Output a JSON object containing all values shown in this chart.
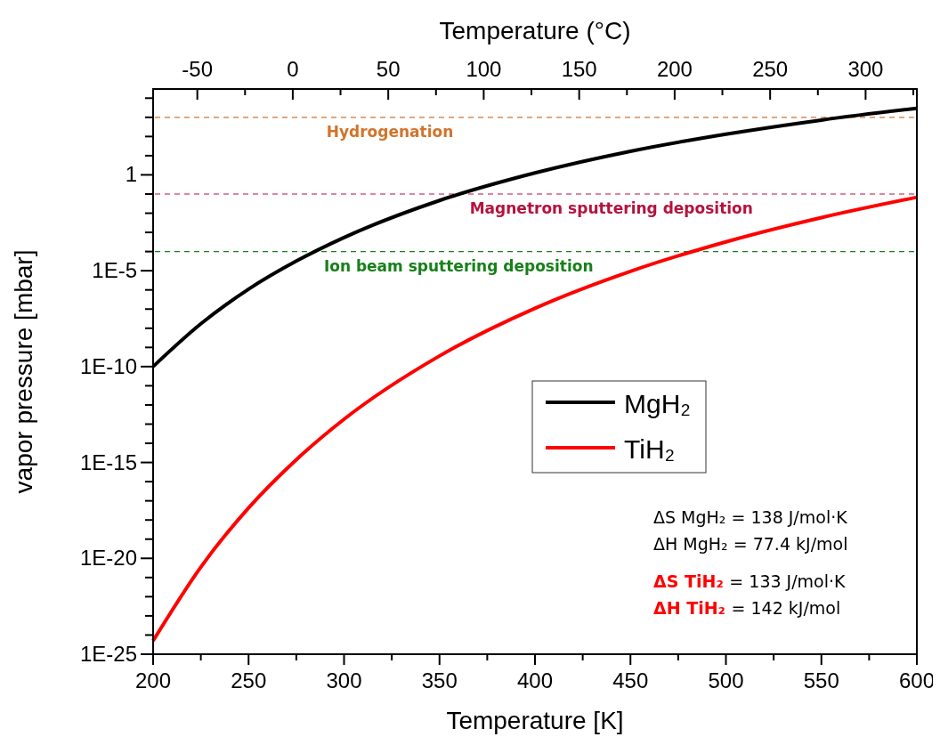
{
  "chart_data": {
    "type": "line",
    "xlabel": "Temperature [K]",
    "ylabel": "vapor pressure [mbar]",
    "x2label": "Temperature (°C)",
    "x": [
      200,
      225,
      250,
      275,
      300,
      350,
      400,
      450,
      500,
      550,
      600
    ],
    "series": [
      {
        "name": "MgH₂",
        "color": "#000000",
        "values": [
          1e-10,
          1.7e-08,
          1.1e-06,
          3.2e-05,
          0.00054,
          0.046,
          1.26,
          17,
          132,
          720,
          2950
        ]
      },
      {
        "name": "TiH₂",
        "color": "#ff0000",
        "values": [
          5e-25,
          3.5e-21,
          4.3e-18,
          1.4e-15,
          1.8e-13,
          3.6e-10,
          1.1e-07,
          9.3e-06,
          0.00032,
          0.0059,
          0.068
        ]
      }
    ],
    "xlim": [
      200,
      600
    ],
    "xticks": [
      200,
      {
        "value": 225,
        "label": null
      },
      250,
      {
        "value": 275,
        "label": null
      },
      300,
      {
        "value": 325,
        "label": null
      },
      350,
      {
        "value": 375,
        "label": null
      },
      400,
      {
        "value": 425,
        "label": null
      },
      450,
      {
        "value": 475,
        "label": null
      },
      500,
      {
        "value": 525,
        "label": null
      },
      550,
      {
        "value": 575,
        "label": null
      },
      600
    ],
    "x2lim": [
      -73.15,
      326.85
    ],
    "x2ticks": [
      -50,
      {
        "value": -25,
        "label": null
      },
      0,
      {
        "value": 25,
        "label": null
      },
      50,
      {
        "value": 75,
        "label": null
      },
      100,
      {
        "value": 125,
        "label": null
      },
      150,
      {
        "value": 175,
        "label": null
      },
      200,
      {
        "value": 225,
        "label": null
      },
      250,
      {
        "value": 275,
        "label": null
      },
      300,
      {
        "value": 325,
        "label": null
      }
    ],
    "ylim": [
      1e-25,
      30000
    ],
    "yticks": [
      {
        "value": 1e-25,
        "label": "1E-25"
      },
      {
        "value": 1e-24,
        "label": null
      },
      {
        "value": 1e-23,
        "label": null
      },
      {
        "value": 1e-22,
        "label": null
      },
      {
        "value": 1e-21,
        "label": null
      },
      {
        "value": 1e-20,
        "label": "1E-20"
      },
      {
        "value": 1e-19,
        "label": null
      },
      {
        "value": 1e-18,
        "label": null
      },
      {
        "value": 1e-17,
        "label": null
      },
      {
        "value": 1e-16,
        "label": null
      },
      {
        "value": 1e-15,
        "label": "1E-15"
      },
      {
        "value": 1e-14,
        "label": null
      },
      {
        "value": 1e-13,
        "label": null
      },
      {
        "value": 1e-12,
        "label": null
      },
      {
        "value": 1e-11,
        "label": null
      },
      {
        "value": 1e-10,
        "label": "1E-10"
      },
      {
        "value": 1e-09,
        "label": null
      },
      {
        "value": 1e-08,
        "label": null
      },
      {
        "value": 1e-07,
        "label": null
      },
      {
        "value": 1e-06,
        "label": null
      },
      {
        "value": 1e-05,
        "label": "1E-5"
      },
      {
        "value": 0.0001,
        "label": null
      },
      {
        "value": 0.001,
        "label": null
      },
      {
        "value": 0.01,
        "label": null
      },
      {
        "value": 0.1,
        "label": null
      },
      1,
      {
        "value": 10,
        "label": null
      },
      {
        "value": 100,
        "label": null
      },
      {
        "value": 1000,
        "label": null
      },
      {
        "value": 10000,
        "label": null
      }
    ],
    "log": "y",
    "grid": false,
    "legend": "right",
    "marker": "none",
    "line_style": "solid",
    "ref_lines": [
      {
        "axis": "y",
        "value": 1000,
        "label": "Hydrogenation",
        "color": "#d2742c",
        "line_style": "dashed"
      },
      {
        "axis": "y",
        "value": 0.1,
        "label": "Magnetron sputtering deposition",
        "color": "#b5123e",
        "line_style": "dashed"
      },
      {
        "axis": "y",
        "value": 0.0001,
        "label": "Ion beam sputtering deposition",
        "color": "#17801a",
        "line_style": "dashed"
      }
    ],
    "annotations": [
      "ΔS MgH₂ = 138 J/mol·K",
      "ΔH MgH₂ = 77.4 kJ/mol",
      "ΔS TiH₂ = 133 J/mol·K",
      "ΔH TiH₂ = 142 kJ/mol"
    ]
  }
}
